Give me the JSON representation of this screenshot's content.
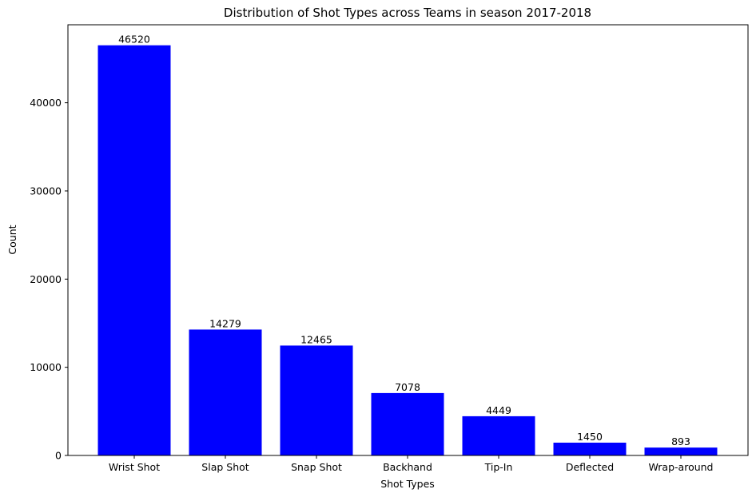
{
  "chart_data": {
    "type": "bar",
    "title": "Distribution of Shot Types across Teams in season 2017-2018",
    "xlabel": "Shot Types",
    "ylabel": "Count",
    "categories": [
      "Wrist Shot",
      "Slap Shot",
      "Snap Shot",
      "Backhand",
      "Tip-In",
      "Deflected",
      "Wrap-around"
    ],
    "values": [
      46520,
      14279,
      12465,
      7078,
      4449,
      1450,
      893
    ],
    "data_labels": [
      "46520",
      "14279",
      "12465",
      "7078",
      "4449",
      "1450",
      "893"
    ],
    "ylim": [
      0,
      48846
    ],
    "yticks": [
      0,
      10000,
      20000,
      30000,
      40000
    ],
    "ytick_labels": [
      "0",
      "10000",
      "20000",
      "30000",
      "40000"
    ],
    "grid": false,
    "bar_color": "#0000ff"
  }
}
